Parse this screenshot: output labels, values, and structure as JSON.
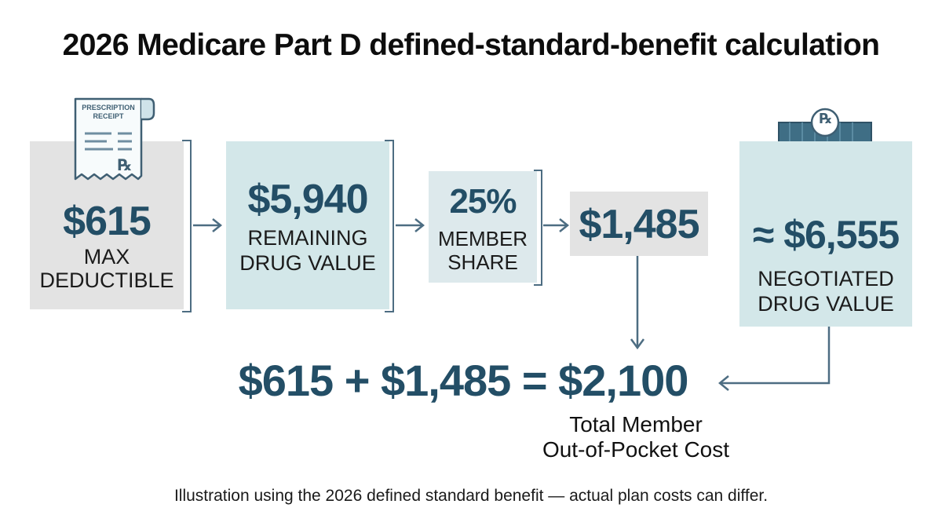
{
  "title": "2026 Medicare Part D defined-standard-benefit calculation",
  "receipt": {
    "header_line1": "PRESCRIPTION",
    "header_line2": "RECEIPT",
    "rx_symbol": "℞",
    "icon": "receipt-icon"
  },
  "pharmacy": {
    "rx_symbol": "℞",
    "icon": "pharmacy-store-icon"
  },
  "steps": {
    "deductible": {
      "value": "$615",
      "label_line1": "MAX",
      "label_line2": "DEDUCTIBLE"
    },
    "remaining": {
      "value": "$5,940",
      "label_line1": "REMAINING",
      "label_line2": "DRUG VALUE"
    },
    "share": {
      "value": "25%",
      "label_line1": "MEMBER",
      "label_line2": "SHARE"
    },
    "member_cost": {
      "value": "$1,485"
    },
    "negotiated": {
      "value": "≈ $6,555",
      "label_line1": "NEGOTIATED",
      "label_line2": "DRUG VALUE"
    }
  },
  "equation": "$615 + $1,485 = $2,100",
  "total_label_line1": "Total Member",
  "total_label_line2": "Out-of-Pocket Cost",
  "footnote": "Illustration using the 2026 defined standard benefit — actual plan costs can differ.",
  "colors": {
    "accent_text": "#234e66",
    "box_gray": "#e3e3e3",
    "box_teal": "#d3e7e9",
    "arrow": "#4d6d82"
  }
}
